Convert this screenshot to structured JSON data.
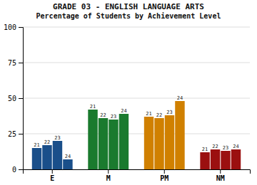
{
  "chart_data": {
    "type": "bar",
    "title": "GRADE 03 - ENGLISH LANGUAGE ARTS",
    "subtitle": "Percentage of Students by Achievement Level",
    "categories": [
      "E",
      "M",
      "PM",
      "NM"
    ],
    "series": [
      {
        "name": "21",
        "values": [
          15,
          42,
          37,
          12
        ],
        "colors": [
          "#1a4f8a",
          "#1a7a2e",
          "#d08000",
          "#9b1010"
        ]
      },
      {
        "name": "22",
        "values": [
          17,
          36,
          36,
          14
        ],
        "colors": [
          "#1a4f8a",
          "#1a7a2e",
          "#d08000",
          "#9b1010"
        ]
      },
      {
        "name": "23",
        "values": [
          20,
          35,
          38,
          13
        ],
        "colors": [
          "#1a4f8a",
          "#1a7a2e",
          "#d08000",
          "#9b1010"
        ]
      },
      {
        "name": "24",
        "values": [
          7,
          39,
          48,
          14
        ],
        "colors": [
          "#1a4f8a",
          "#1a7a2e",
          "#d08000",
          "#9b1010"
        ]
      }
    ],
    "ylim": [
      0,
      100
    ],
    "yticks": [
      0,
      25,
      50,
      75,
      100
    ],
    "grid": true
  }
}
